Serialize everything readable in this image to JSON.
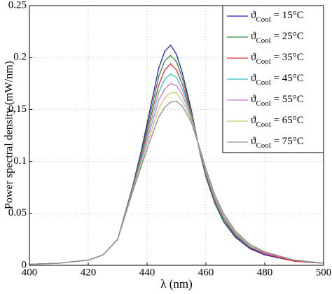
{
  "chart_data": {
    "type": "line",
    "x_label": "λ (nm)",
    "y_label": "Power spectral density (mW/nm)",
    "x": [
      400,
      410,
      420,
      425,
      430,
      435,
      438,
      441,
      444,
      446,
      448,
      450,
      452,
      455,
      458,
      460,
      463,
      466,
      470,
      475,
      480,
      490,
      500
    ],
    "xlim": [
      400,
      500
    ],
    "xticks": [
      400,
      420,
      440,
      460,
      480,
      500
    ],
    "ylim": [
      0,
      0.25
    ],
    "yticks": [
      0,
      0.05,
      0.1,
      0.15,
      0.2,
      0.25
    ],
    "grid": true,
    "legend": "upper right",
    "series": [
      {
        "name": "ϑCool = 15°C",
        "color": "#1f1fbf",
        "values": [
          0.001,
          0.002,
          0.005,
          0.01,
          0.025,
          0.075,
          0.11,
          0.15,
          0.19,
          0.206,
          0.212,
          0.203,
          0.185,
          0.15,
          0.108,
          0.085,
          0.06,
          0.042,
          0.027,
          0.016,
          0.01,
          0.004,
          0.002
        ]
      },
      {
        "name": "ϑCool = 25°C",
        "color": "#2e8b2e",
        "values": [
          0.001,
          0.002,
          0.005,
          0.01,
          0.025,
          0.074,
          0.108,
          0.145,
          0.182,
          0.197,
          0.202,
          0.196,
          0.18,
          0.148,
          0.109,
          0.086,
          0.061,
          0.043,
          0.028,
          0.017,
          0.011,
          0.004,
          0.002
        ]
      },
      {
        "name": "ϑCool = 35°C",
        "color": "#e03030",
        "values": [
          0.001,
          0.002,
          0.005,
          0.01,
          0.025,
          0.073,
          0.105,
          0.14,
          0.174,
          0.188,
          0.194,
          0.188,
          0.174,
          0.146,
          0.109,
          0.088,
          0.063,
          0.045,
          0.029,
          0.017,
          0.011,
          0.004,
          0.002
        ]
      },
      {
        "name": "ϑCool = 45°C",
        "color": "#33c0c0",
        "values": [
          0.001,
          0.002,
          0.005,
          0.01,
          0.025,
          0.072,
          0.103,
          0.135,
          0.167,
          0.179,
          0.184,
          0.181,
          0.169,
          0.144,
          0.11,
          0.089,
          0.064,
          0.046,
          0.03,
          0.018,
          0.012,
          0.005,
          0.002
        ]
      },
      {
        "name": "ϑCool = 55°C",
        "color": "#c77ad0",
        "values": [
          0.001,
          0.002,
          0.005,
          0.01,
          0.025,
          0.071,
          0.1,
          0.13,
          0.159,
          0.17,
          0.175,
          0.173,
          0.164,
          0.142,
          0.111,
          0.09,
          0.065,
          0.047,
          0.031,
          0.019,
          0.012,
          0.005,
          0.002
        ]
      },
      {
        "name": "ϑCool = 65°C",
        "color": "#c8c870",
        "values": [
          0.001,
          0.002,
          0.005,
          0.01,
          0.025,
          0.071,
          0.098,
          0.125,
          0.151,
          0.161,
          0.166,
          0.166,
          0.158,
          0.14,
          0.111,
          0.092,
          0.067,
          0.049,
          0.032,
          0.019,
          0.013,
          0.005,
          0.002
        ]
      },
      {
        "name": "ϑCool = 75°C",
        "color": "#8c8c8c",
        "values": [
          0.001,
          0.002,
          0.005,
          0.01,
          0.025,
          0.07,
          0.095,
          0.12,
          0.143,
          0.152,
          0.157,
          0.158,
          0.153,
          0.138,
          0.112,
          0.093,
          0.068,
          0.05,
          0.033,
          0.02,
          0.013,
          0.005,
          0.002
        ]
      }
    ]
  }
}
